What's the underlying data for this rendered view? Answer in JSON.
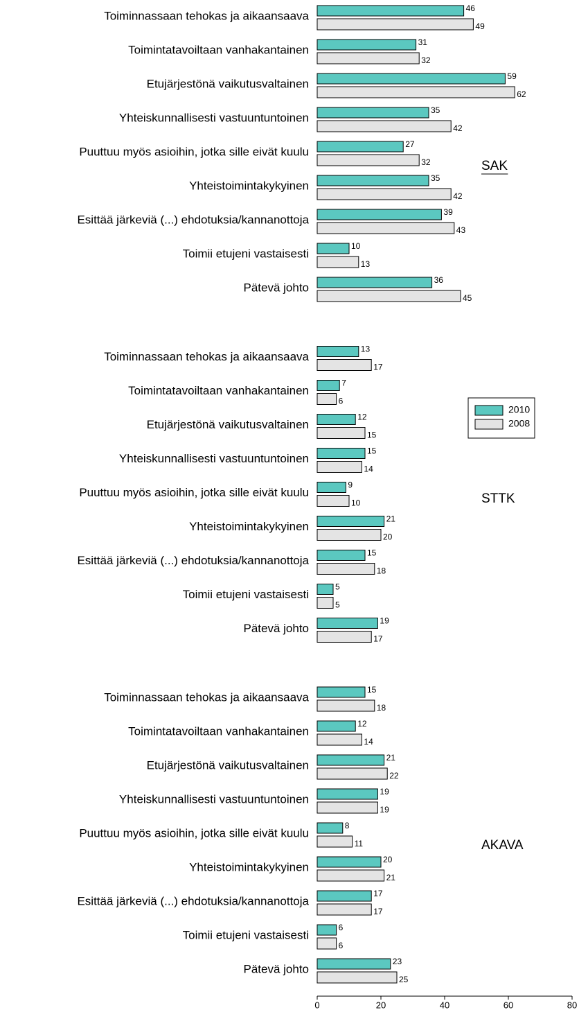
{
  "chart_data": [
    {
      "type": "bar",
      "label": "SAK",
      "categories": [
        "Toiminnassaan tehokas ja aikaansaava",
        "Toimintatavoiltaan vanhakantainen",
        "Etujärjestönä vaikutusvaltainen",
        "Yhteiskunnallisesti vastuuntuntoinen",
        "Puuttuu myös asioihin, jotka sille eivät kuulu",
        "Yhteistoimintakykyinen",
        "Esittää järkeviä (...) ehdotuksia/kannanottoja",
        "Toimii etujeni vastaisesti",
        "Pätevä johto"
      ],
      "series": [
        {
          "color": "#5bc8c0",
          "values": [
            46,
            31,
            59,
            35,
            27,
            35,
            39,
            10,
            36
          ]
        },
        {
          "color": "#e4e4e4",
          "values": [
            49,
            32,
            62,
            42,
            32,
            42,
            43,
            13,
            45
          ]
        }
      ],
      "xlim": [
        0,
        80
      ]
    },
    {
      "type": "bar",
      "label": "STTK",
      "categories": [
        "Toiminnassaan tehokas ja aikaansaava",
        "Toimintatavoiltaan vanhakantainen",
        "Etujärjestönä vaikutusvaltainen",
        "Yhteiskunnallisesti vastuuntuntoinen",
        "Puuttuu myös asioihin, jotka sille eivät kuulu",
        "Yhteistoimintakykyinen",
        "Esittää järkeviä (...) ehdotuksia/kannanottoja",
        "Toimii etujeni vastaisesti",
        "Pätevä johto"
      ],
      "series": [
        {
          "name": "2010",
          "color": "#5bc8c0",
          "values": [
            13,
            7,
            12,
            15,
            9,
            21,
            15,
            5,
            19
          ]
        },
        {
          "name": "2008",
          "color": "#e4e4e4",
          "values": [
            17,
            6,
            15,
            14,
            10,
            20,
            18,
            5,
            17
          ]
        }
      ],
      "xlim": [
        0,
        80
      ]
    },
    {
      "type": "bar",
      "label": "AKAVA",
      "categories": [
        "Toiminnassaan tehokas ja aikaansaava",
        "Toimintatavoiltaan vanhakantainen",
        "Etujärjestönä vaikutusvaltainen",
        "Yhteiskunnallisesti vastuuntuntoinen",
        "Puuttuu myös asioihin, jotka sille eivät kuulu",
        "Yhteistoimintakykyinen",
        "Esittää järkeviä (...) ehdotuksia/kannanottoja",
        "Toimii etujeni vastaisesti",
        "Pätevä johto"
      ],
      "series": [
        {
          "color": "#5bc8c0",
          "values": [
            15,
            12,
            21,
            19,
            8,
            20,
            17,
            6,
            23
          ]
        },
        {
          "color": "#e4e4e4",
          "values": [
            18,
            14,
            22,
            19,
            11,
            21,
            17,
            6,
            25
          ]
        }
      ],
      "xlim": [
        0,
        80
      ],
      "xticks": [
        0,
        20,
        40,
        60,
        80
      ]
    }
  ]
}
